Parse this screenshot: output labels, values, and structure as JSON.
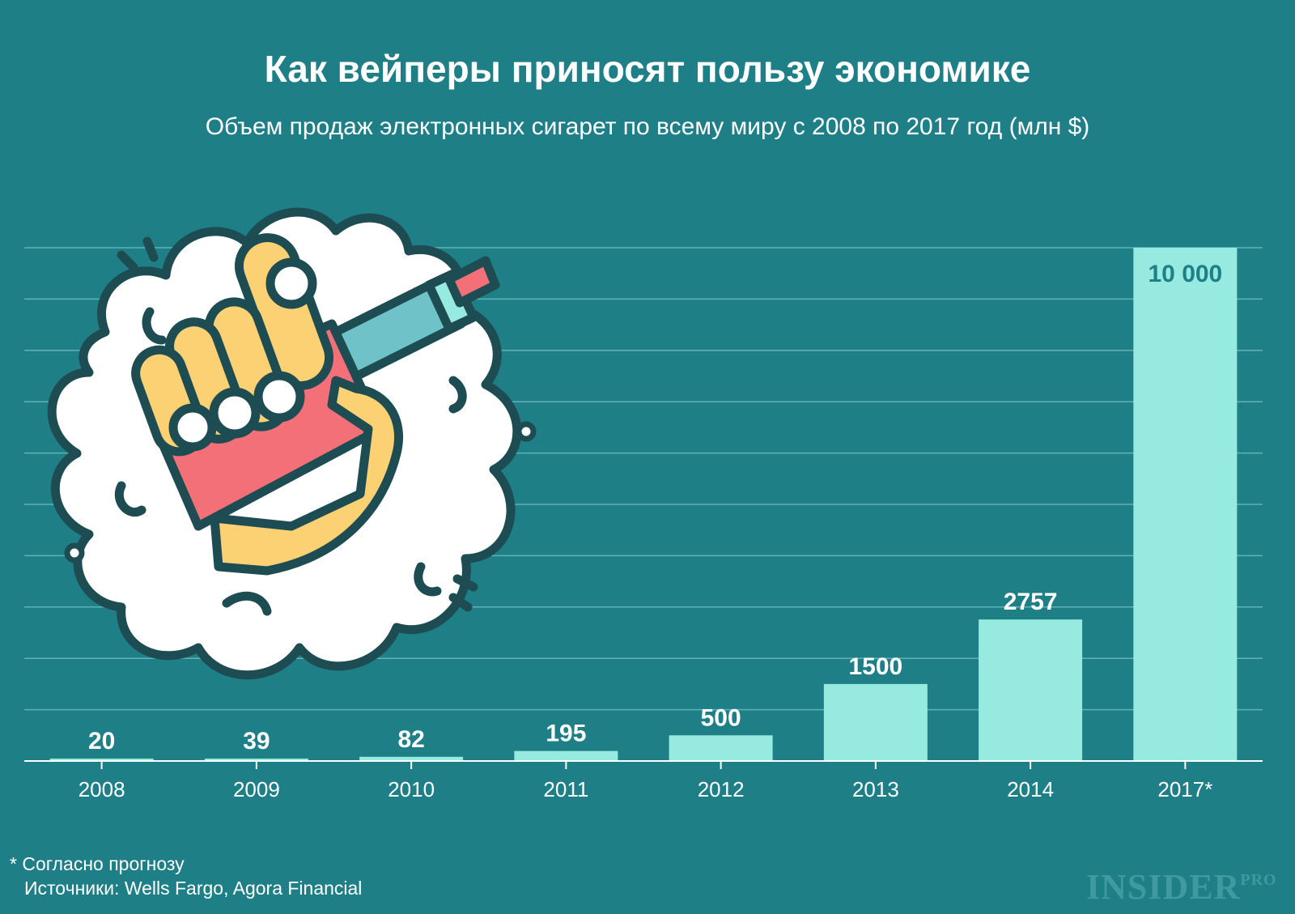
{
  "title": "Как вейперы приносят пользу экономике",
  "subtitle": "Объем продаж электронных сигарет по всему миру с 2008 по 2017 год (млн $)",
  "footnote": {
    "note": "* Согласно прогнозу",
    "sources": "Источники: Wells Fargo, Agora Financial"
  },
  "logo": {
    "main": "INSIDER",
    "suffix": "PRO"
  },
  "colors": {
    "background": "#1f7f86",
    "bar": "#96eadf",
    "grid": "#5fb3b8",
    "axis": "#ffffff",
    "top_label": "#1f7f86"
  },
  "chart_data": {
    "type": "bar",
    "categories": [
      "2008",
      "2009",
      "2010",
      "2011",
      "2012",
      "2013",
      "2014",
      "2017*"
    ],
    "values": [
      20,
      39,
      82,
      195,
      500,
      1500,
      2757,
      10000
    ],
    "value_labels": [
      "20",
      "39",
      "82",
      "195",
      "500",
      "1500",
      "2757",
      "10 000"
    ],
    "ylim": [
      0,
      10000
    ],
    "grid": true,
    "y_tick_labels_shown": false
  }
}
